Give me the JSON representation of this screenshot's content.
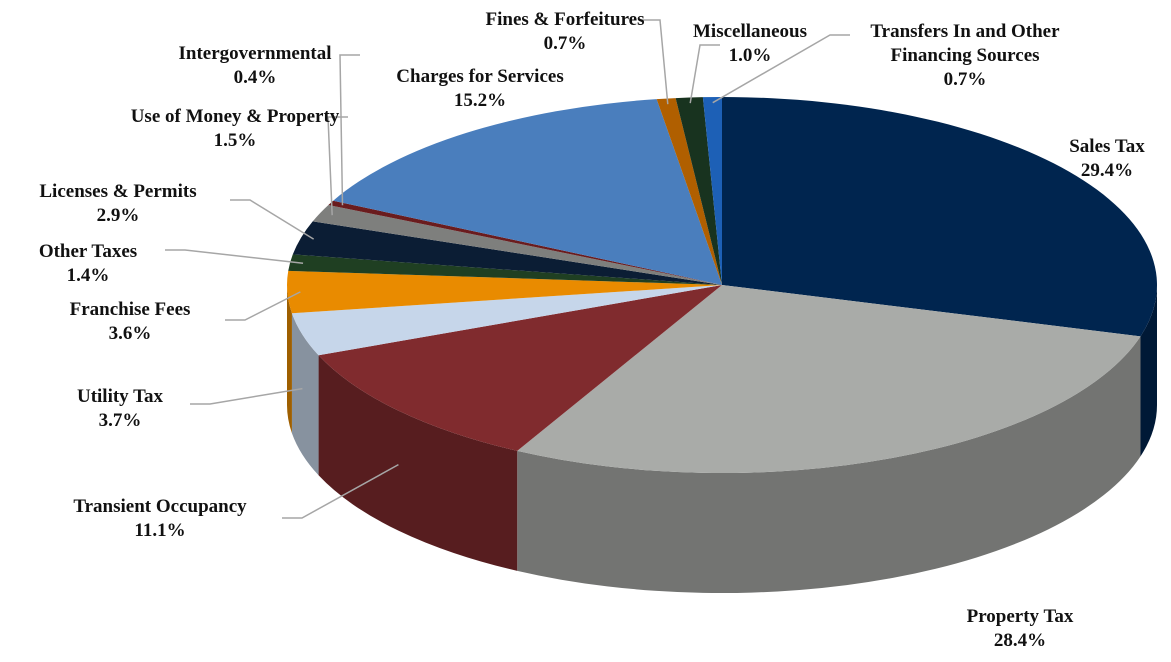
{
  "chart_data": {
    "type": "pie",
    "categories": [
      "Sales Tax",
      "Property Tax",
      "Transient Occupancy",
      "Utility Tax",
      "Franchise Fees",
      "Other Taxes",
      "Licenses & Permits",
      "Use of Money & Property",
      "Intergovernmental",
      "Charges for Services",
      "Fines & Forfeitures",
      "Miscellaneous",
      "Transfers In and Other Financing Sources"
    ],
    "values": [
      29.4,
      28.4,
      11.1,
      3.7,
      3.6,
      1.4,
      2.9,
      1.5,
      0.4,
      15.2,
      0.7,
      1.0,
      0.7
    ],
    "value_labels": [
      "29.4%",
      "28.4%",
      "11.1%",
      "3.7%",
      "3.6%",
      "1.4%",
      "2.9%",
      "1.5%",
      "0.4%",
      "15.2%",
      "0.7%",
      "1.0%",
      "0.7%"
    ],
    "colors": [
      "#00254f",
      "#a9aba8",
      "#802b2e",
      "#c6d6ea",
      "#e98b00",
      "#1f3f22",
      "#0b1d34",
      "#7e7f7d",
      "#6a1c1e",
      "#4a7ebd",
      "#b05f00",
      "#18331f",
      "#1d60b6"
    ]
  }
}
